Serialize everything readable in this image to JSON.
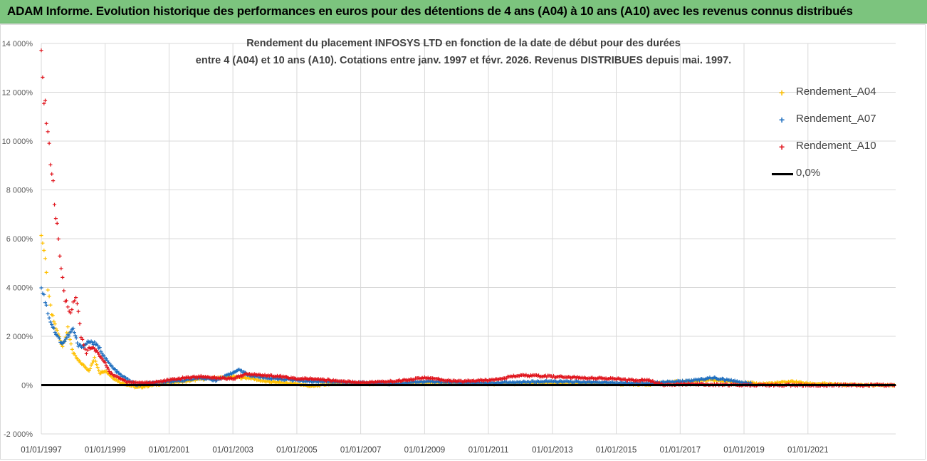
{
  "header": {
    "title": "ADAM Informe. Evolution historique des performances en euros pour des détentions de 4 ans (A04) à 10 ans (A10) avec les revenus connus distribués"
  },
  "chart_data": {
    "type": "scatter",
    "title_line1": "Rendement du placement INFOSYS LTD en fonction de la date de début pour des durées",
    "title_line2": "entre 4 (A04) et 10 ans (A10). Cotations entre janv. 1997 et févr. 2026. Revenus DISTRIBUES depuis mai. 1997.",
    "x_range": [
      "1997-01-01",
      "2023-10-01"
    ],
    "ylim": [
      -2000,
      14000
    ],
    "y_ticks": [
      "-2 000%",
      "0%",
      "2 000%",
      "4 000%",
      "6 000%",
      "8 000%",
      "10 000%",
      "12 000%",
      "14 000%"
    ],
    "x_ticks": [
      "01/01/1997",
      "01/01/1999",
      "01/01/2001",
      "01/01/2003",
      "01/01/2005",
      "01/01/2007",
      "01/01/2009",
      "01/01/2011",
      "01/01/2013",
      "01/01/2015",
      "01/01/2017",
      "01/01/2019",
      "01/01/2021"
    ],
    "grid": true,
    "legend_position": "top-right",
    "series": [
      {
        "name": "Rendement_A04",
        "color": "#ffc000",
        "x": [
          "1997-01",
          "1997-02",
          "1997-03",
          "1997-04",
          "1997-05",
          "1997-07",
          "1997-09",
          "1997-11",
          "1998-01",
          "1998-03",
          "1998-05",
          "1998-07",
          "1998-09",
          "1998-11",
          "1999-01",
          "1999-04",
          "1999-07",
          "1999-10",
          "2000-01",
          "2000-04",
          "2000-07",
          "2000-10",
          "2001-01",
          "2001-07",
          "2002-01",
          "2002-07",
          "2003-01",
          "2003-04",
          "2003-07",
          "2004-01",
          "2004-07",
          "2005-01",
          "2005-07",
          "2006-01",
          "2006-07",
          "2007-01",
          "2008-01",
          "2009-01",
          "2010-01",
          "2011-01",
          "2012-01",
          "2013-01",
          "2014-01",
          "2015-01",
          "2016-01",
          "2017-01",
          "2018-01",
          "2019-01",
          "2019-07",
          "2020-01",
          "2020-07",
          "2021-01",
          "2021-07",
          "2022-01",
          "2022-07",
          "2023-01",
          "2023-07",
          "2023-10"
        ],
        "y": [
          6300,
          5500,
          4500,
          3500,
          2900,
          2200,
          1600,
          2300,
          1300,
          1000,
          800,
          600,
          1100,
          500,
          600,
          300,
          100,
          0,
          -100,
          -50,
          0,
          50,
          100,
          150,
          250,
          300,
          350,
          300,
          300,
          150,
          100,
          50,
          -50,
          50,
          100,
          50,
          60,
          100,
          80,
          50,
          60,
          80,
          60,
          40,
          30,
          150,
          200,
          100,
          50,
          80,
          150,
          60,
          50,
          20,
          10,
          0,
          0,
          0
        ]
      },
      {
        "name": "Rendement_A07",
        "color": "#1f6fbf",
        "x": [
          "1997-01",
          "1997-02",
          "1997-03",
          "1997-04",
          "1997-05",
          "1997-07",
          "1997-09",
          "1997-11",
          "1998-01",
          "1998-03",
          "1998-05",
          "1998-07",
          "1998-09",
          "1998-11",
          "1999-01",
          "1999-04",
          "1999-07",
          "1999-10",
          "2000-01",
          "2000-04",
          "2000-07",
          "2000-10",
          "2001-01",
          "2001-07",
          "2002-01",
          "2002-07",
          "2003-01",
          "2003-03",
          "2003-07",
          "2004-01",
          "2004-07",
          "2005-01",
          "2005-07",
          "2006-01",
          "2006-07",
          "2007-01",
          "2008-01",
          "2009-01",
          "2010-01",
          "2011-01",
          "2012-01",
          "2013-01",
          "2014-01",
          "2015-01",
          "2016-01",
          "2017-01",
          "2017-07",
          "2018-01",
          "2018-07",
          "2019-01",
          "2019-04"
        ],
        "y": [
          4000,
          3700,
          3200,
          2800,
          2500,
          2000,
          1700,
          2000,
          2300,
          1600,
          1600,
          1800,
          1700,
          1500,
          1100,
          700,
          400,
          200,
          0,
          50,
          80,
          100,
          150,
          200,
          300,
          200,
          500,
          650,
          400,
          300,
          250,
          200,
          150,
          150,
          100,
          100,
          50,
          150,
          100,
          80,
          120,
          150,
          120,
          100,
          80,
          150,
          200,
          300,
          200,
          100,
          80
        ]
      },
      {
        "name": "Rendement_A10",
        "color": "#e0141c",
        "x": [
          "1997-01",
          "1997-02",
          "1997-03",
          "1997-04",
          "1997-05",
          "1997-06",
          "1997-07",
          "1997-08",
          "1997-09",
          "1997-10",
          "1997-11",
          "1997-12",
          "1998-01",
          "1998-02",
          "1998-03",
          "1998-04",
          "1998-05",
          "1998-06",
          "1998-07",
          "1998-09",
          "1998-11",
          "1999-01",
          "1999-03",
          "1999-06",
          "1999-09",
          "2000-01",
          "2000-06",
          "2001-01",
          "2001-07",
          "2002-01",
          "2002-07",
          "2003-01",
          "2003-06",
          "2004-01",
          "2004-07",
          "2005-01",
          "2005-07",
          "2006-01",
          "2007-01",
          "2008-01",
          "2009-01",
          "2010-01",
          "2011-01",
          "2012-01",
          "2013-01",
          "2014-01",
          "2015-01",
          "2015-07",
          "2016-01",
          "2016-07",
          "2017-01",
          "2018-01",
          "2019-01",
          "2020-01",
          "2021-01",
          "2022-01",
          "2023-01",
          "2023-10"
        ],
        "y": [
          13200,
          12000,
          11000,
          9600,
          8800,
          7500,
          6400,
          5200,
          4300,
          3500,
          3300,
          3000,
          3300,
          3600,
          3000,
          2000,
          1700,
          1300,
          1500,
          1500,
          1200,
          900,
          500,
          300,
          150,
          100,
          100,
          200,
          300,
          350,
          300,
          250,
          450,
          400,
          350,
          250,
          250,
          200,
          100,
          150,
          300,
          150,
          200,
          400,
          350,
          300,
          250,
          200,
          200,
          0,
          50,
          20,
          10,
          0,
          0,
          0,
          0,
          0
        ]
      }
    ],
    "reference_line": {
      "name": "0,0%",
      "y": 0,
      "color": "#000000"
    }
  }
}
